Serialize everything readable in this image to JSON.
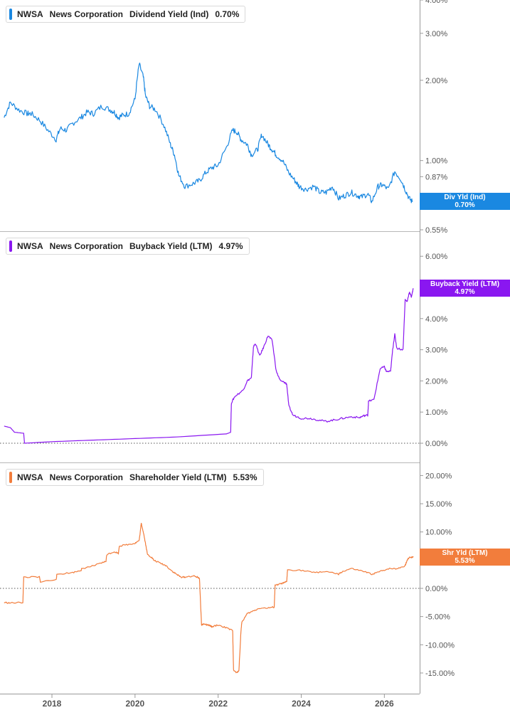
{
  "colors": {
    "dividend": "#1a88e1",
    "buyback": "#8a17f0",
    "shareholder": "#f27d3c",
    "grid": "#d8d8d8",
    "axis_text": "#555555"
  },
  "chart_data": [
    {
      "type": "line",
      "ticker": "NWSA",
      "company": "News Corporation",
      "metric": "Dividend Yield (Ind)",
      "current": "0.70%",
      "tag": [
        "Div Yld (Ind)",
        "0.70%"
      ],
      "y_scale": "log",
      "ylim": [
        0.55,
        4.0
      ],
      "yticks": [
        0.55,
        0.87,
        1.0,
        2.0,
        3.0,
        4.0
      ],
      "ytick_labels": [
        "0.55%",
        "0.87%",
        "1.00%",
        "2.00%",
        "3.00%",
        "4.00%"
      ],
      "zero_line": false,
      "x": [
        2016.85,
        2017.0,
        2017.2,
        2017.4,
        2017.5,
        2017.7,
        2017.9,
        2018.1,
        2018.2,
        2018.35,
        2018.5,
        2018.7,
        2018.85,
        2019.0,
        2019.2,
        2019.4,
        2019.5,
        2019.6,
        2019.7,
        2019.85,
        2020.0,
        2020.1,
        2020.2,
        2020.25,
        2020.35,
        2020.5,
        2020.7,
        2020.85,
        2020.95,
        2021.05,
        2021.2,
        2021.4,
        2021.55,
        2021.7,
        2021.85,
        2022.0,
        2022.2,
        2022.35,
        2022.45,
        2022.55,
        2022.7,
        2022.8,
        2022.95,
        2023.05,
        2023.2,
        2023.3,
        2023.4,
        2023.55,
        2023.7,
        2023.85,
        2023.95,
        2024.1,
        2024.3,
        2024.45,
        2024.6,
        2024.75,
        2024.9,
        2025.05,
        2025.2,
        2025.35,
        2025.45,
        2025.6,
        2025.7,
        2025.85,
        2025.95,
        2026.1,
        2026.25,
        2026.4,
        2026.5,
        2026.6,
        2026.68
      ],
      "y": [
        1.45,
        1.65,
        1.55,
        1.5,
        1.5,
        1.42,
        1.3,
        1.2,
        1.32,
        1.3,
        1.38,
        1.45,
        1.52,
        1.5,
        1.6,
        1.55,
        1.52,
        1.45,
        1.48,
        1.5,
        1.7,
        2.3,
        2.05,
        1.75,
        1.6,
        1.55,
        1.35,
        1.15,
        1.05,
        0.88,
        0.8,
        0.82,
        0.84,
        0.9,
        0.94,
        0.96,
        1.12,
        1.3,
        1.28,
        1.2,
        1.15,
        1.05,
        1.1,
        1.25,
        1.15,
        1.1,
        1.05,
        1.0,
        0.9,
        0.84,
        0.8,
        0.78,
        0.8,
        0.76,
        0.76,
        0.8,
        0.72,
        0.74,
        0.76,
        0.74,
        0.73,
        0.75,
        0.7,
        0.8,
        0.81,
        0.78,
        0.91,
        0.85,
        0.78,
        0.72,
        0.7
      ]
    },
    {
      "type": "line",
      "ticker": "NWSA",
      "company": "News Corporation",
      "metric": "Buyback Yield (LTM)",
      "current": "4.97%",
      "tag": [
        "Buyback Yield (LTM)",
        "4.97%"
      ],
      "y_scale": "linear",
      "ylim": [
        -0.35,
        6.0
      ],
      "yticks": [
        0,
        1,
        2,
        3,
        4,
        5,
        6
      ],
      "ytick_labels": [
        "0.00%",
        "1.00%",
        "2.00%",
        "3.00%",
        "4.00%",
        "",
        "6.00%"
      ],
      "zero_line": true,
      "x": [
        2016.85,
        2017.0,
        2017.1,
        2017.12,
        2017.32,
        2017.34,
        2018.0,
        2019.0,
        2020.0,
        2021.0,
        2022.2,
        2022.3,
        2022.32,
        2022.4,
        2022.6,
        2022.7,
        2022.8,
        2022.85,
        2022.9,
        2023.0,
        2023.1,
        2023.2,
        2023.3,
        2023.4,
        2023.5,
        2023.6,
        2023.65,
        2023.7,
        2023.8,
        2024.0,
        2024.2,
        2024.4,
        2024.6,
        2024.8,
        2025.0,
        2025.2,
        2025.4,
        2025.5,
        2025.6,
        2025.62,
        2025.75,
        2025.9,
        2026.0,
        2026.05,
        2026.15,
        2026.2,
        2026.25,
        2026.3,
        2026.45,
        2026.5,
        2026.55,
        2026.6,
        2026.65,
        2026.7
      ],
      "y": [
        0.55,
        0.5,
        0.35,
        0.35,
        0.32,
        0.0,
        0.05,
        0.1,
        0.15,
        0.2,
        0.3,
        0.35,
        1.3,
        1.5,
        1.7,
        2.0,
        2.1,
        3.1,
        3.2,
        2.8,
        3.1,
        3.45,
        3.3,
        2.3,
        2.0,
        1.95,
        1.9,
        1.2,
        0.9,
        0.8,
        0.8,
        0.75,
        0.7,
        0.75,
        0.8,
        0.85,
        0.82,
        0.88,
        0.9,
        1.35,
        1.4,
        2.4,
        2.45,
        2.3,
        2.3,
        3.0,
        3.5,
        3.05,
        3.0,
        4.6,
        4.55,
        4.85,
        4.7,
        4.97
      ]
    },
    {
      "type": "line",
      "ticker": "NWSA",
      "company": "News Corporation",
      "metric": "Shareholder Yield (LTM)",
      "current": "5.53%",
      "tag": [
        "Shr Yld (LTM)",
        "5.53%"
      ],
      "y_scale": "linear",
      "ylim": [
        -18.0,
        20.0
      ],
      "yticks": [
        -15,
        -10,
        -5,
        0,
        5,
        10,
        15,
        20
      ],
      "ytick_labels": [
        "-15.00%",
        "-10.00%",
        "-5.00%",
        "0.00%",
        "",
        "10.00%",
        "15.00%",
        "20.00%"
      ],
      "zero_line": true,
      "x_ticks": [
        "2018",
        "2020",
        "2022",
        "2024",
        "2026"
      ],
      "x_tick_values": [
        2018,
        2020,
        2022,
        2024,
        2026
      ],
      "xlim": [
        2016.75,
        2026.85
      ],
      "x": [
        2016.85,
        2017.0,
        2017.3,
        2017.32,
        2017.7,
        2017.72,
        2018.1,
        2018.12,
        2018.5,
        2018.7,
        2018.72,
        2019.0,
        2019.2,
        2019.3,
        2019.32,
        2019.5,
        2019.6,
        2019.62,
        2019.85,
        2020.0,
        2020.1,
        2020.15,
        2020.2,
        2020.25,
        2020.3,
        2020.4,
        2020.45,
        2020.6,
        2020.75,
        2020.9,
        2021.0,
        2021.1,
        2021.2,
        2021.4,
        2021.5,
        2021.55,
        2021.6,
        2021.65,
        2021.75,
        2021.8,
        2021.85,
        2022.0,
        2022.2,
        2022.35,
        2022.37,
        2022.45,
        2022.5,
        2022.55,
        2022.57,
        2022.7,
        2022.85,
        2023.0,
        2023.2,
        2023.35,
        2023.37,
        2023.5,
        2023.6,
        2023.65,
        2023.67,
        2024.0,
        2024.3,
        2024.6,
        2024.9,
        2025.0,
        2025.2,
        2025.5,
        2025.7,
        2025.9,
        2026.1,
        2026.3,
        2026.5,
        2026.55,
        2026.6,
        2026.7
      ],
      "y": [
        -2.5,
        -2.6,
        -2.5,
        2.0,
        2.0,
        1.2,
        1.5,
        2.5,
        2.8,
        3.2,
        3.5,
        4.0,
        4.5,
        4.8,
        6.0,
        6.5,
        6.2,
        7.5,
        7.8,
        8.0,
        8.5,
        11.5,
        10.0,
        8.0,
        6.0,
        5.5,
        5.0,
        4.5,
        4.0,
        3.0,
        2.5,
        2.0,
        2.0,
        2.2,
        2.0,
        1.8,
        -6.5,
        -6.3,
        -6.5,
        -6.6,
        -6.8,
        -6.5,
        -7.0,
        -7.5,
        -14.5,
        -15.0,
        -14.5,
        -7.5,
        -6.0,
        -4.5,
        -4.0,
        -3.5,
        -3.5,
        -3.3,
        0.5,
        0.8,
        1.0,
        1.2,
        3.3,
        3.2,
        2.8,
        3.0,
        2.5,
        3.0,
        3.5,
        3.0,
        2.5,
        3.0,
        3.5,
        3.5,
        4.0,
        5.0,
        5.5,
        5.53
      ]
    }
  ]
}
